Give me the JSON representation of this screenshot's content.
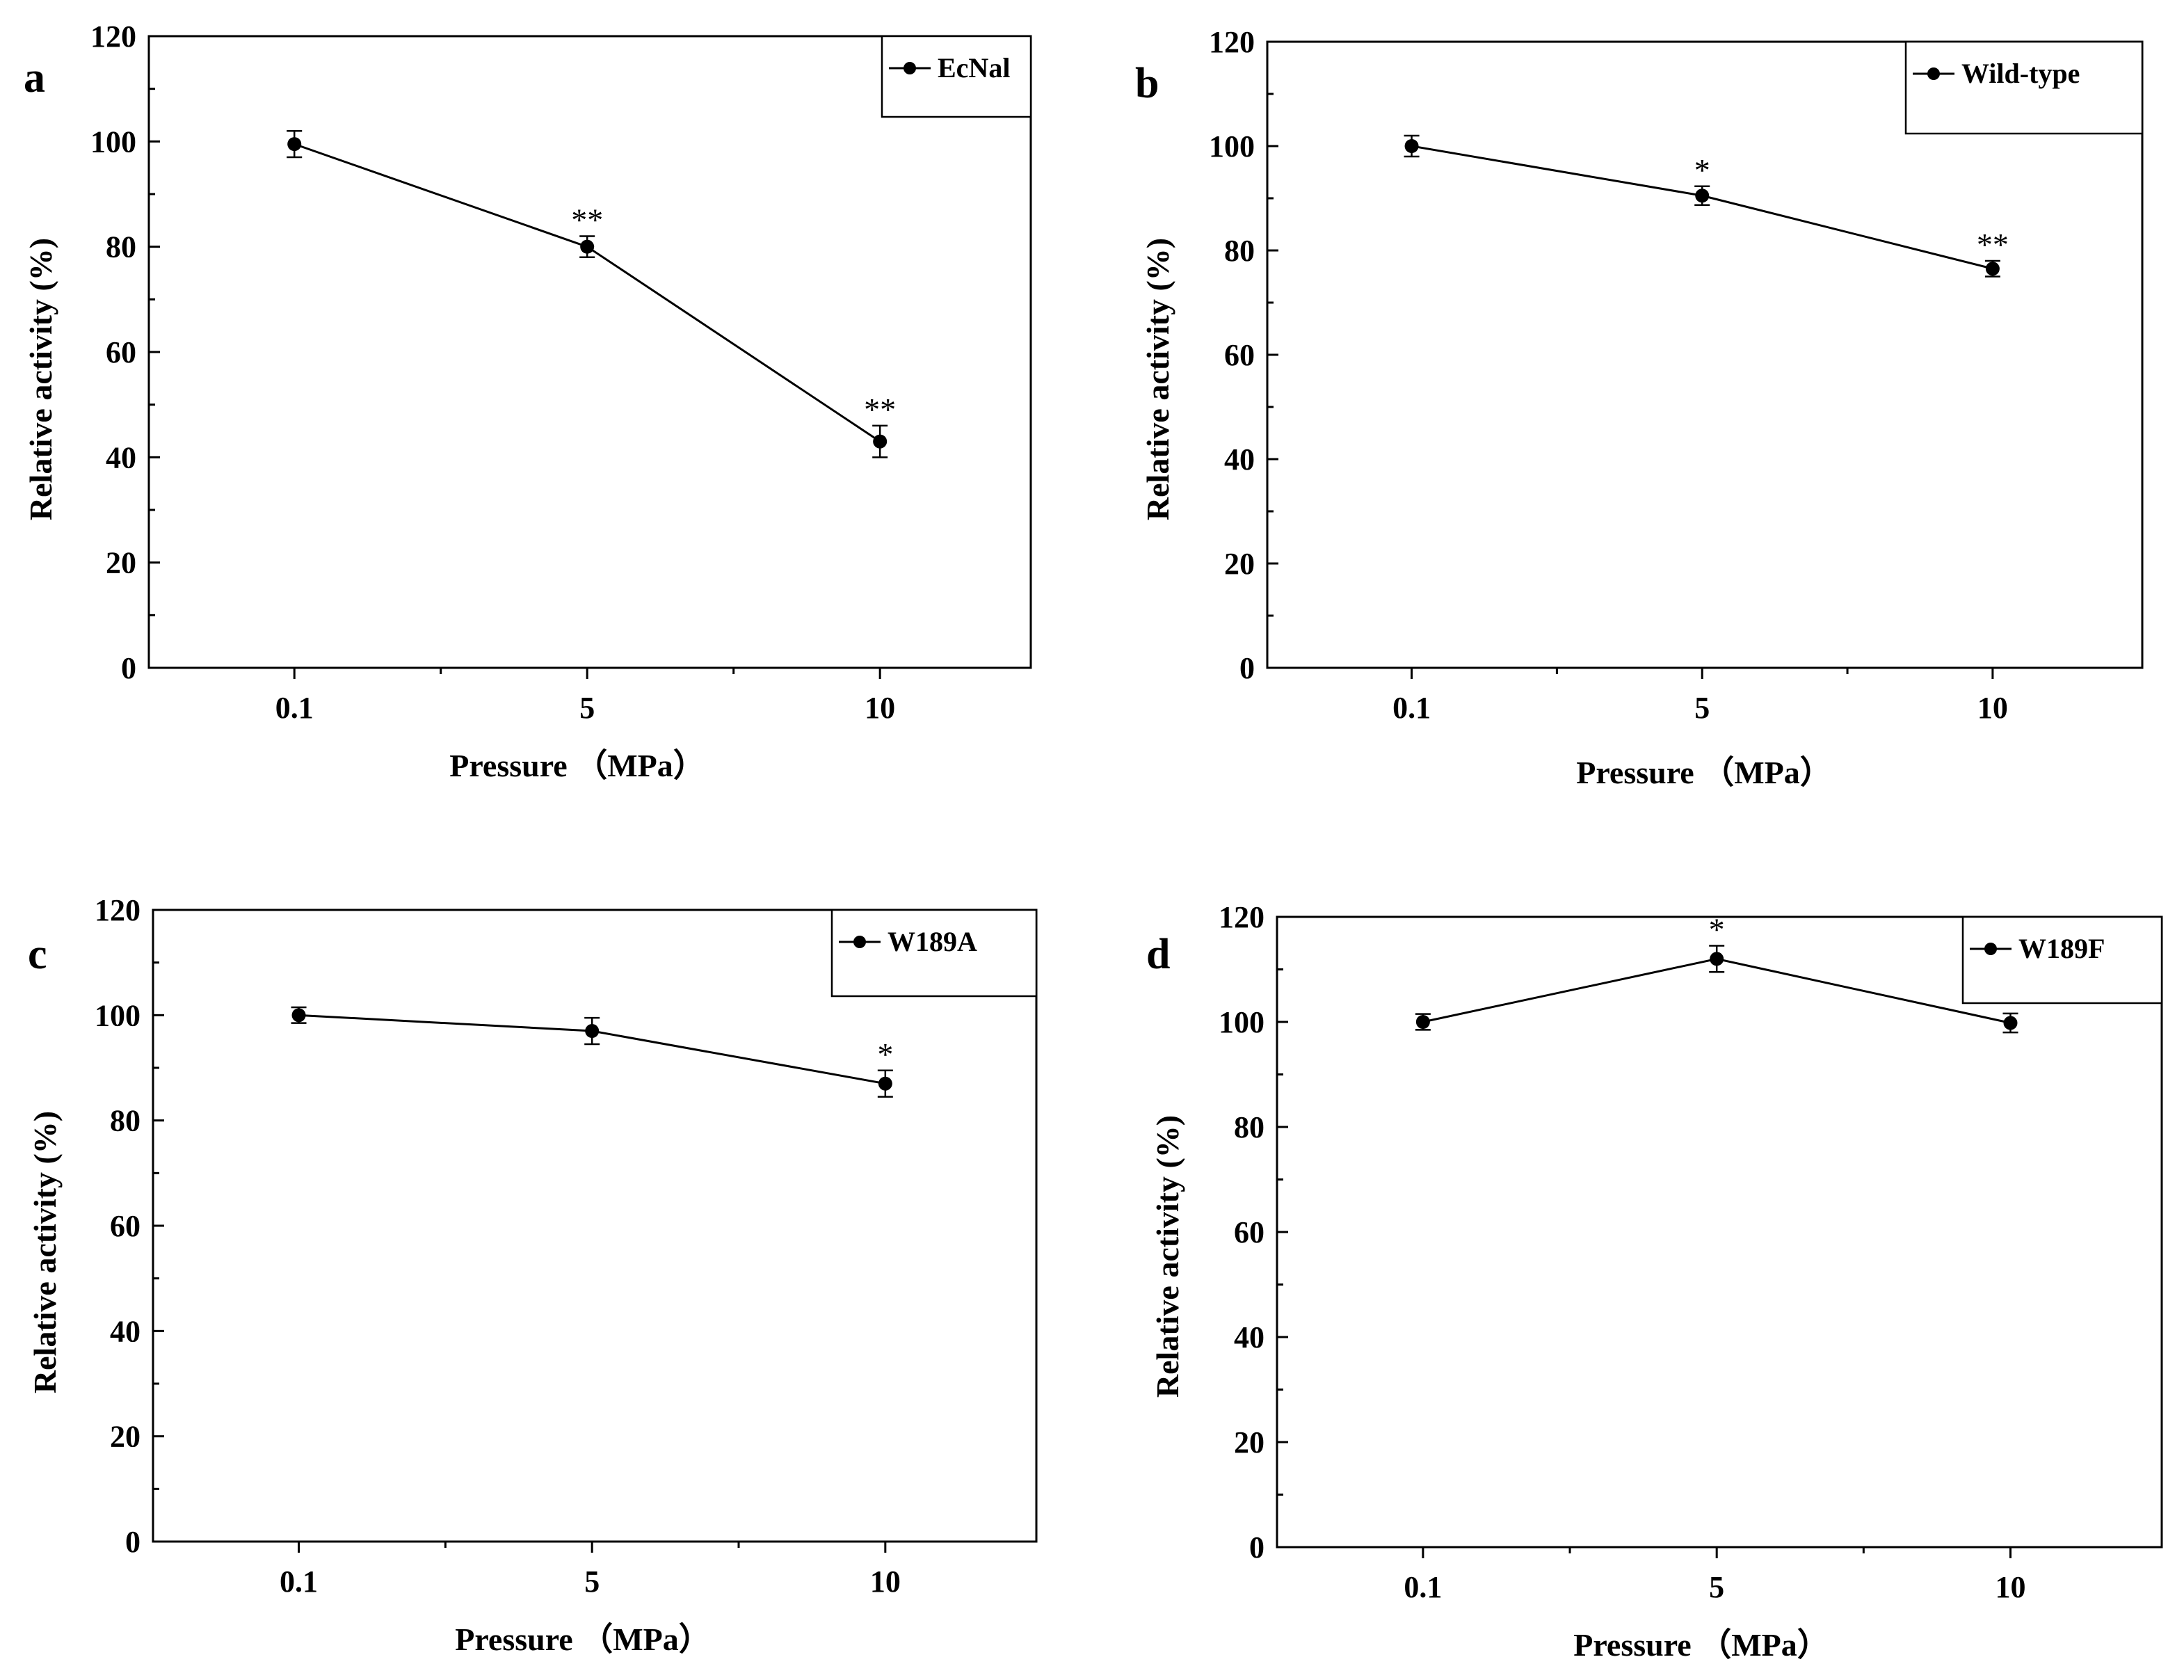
{
  "chart_data": [
    {
      "type": "line",
      "panel_label": "a",
      "categories": [
        "0.1",
        "5",
        "10"
      ],
      "series": [
        {
          "name": "EcNal",
          "values": [
            99.5,
            80,
            43
          ],
          "errors": [
            2.5,
            2,
            3
          ]
        }
      ],
      "significance": [
        "",
        "**",
        "**"
      ],
      "xlabel": "Pressure （MPa）",
      "ylabel": "Relative activity (%)",
      "ylim": [
        0,
        120
      ],
      "yticks": [
        "0",
        "20",
        "40",
        "60",
        "80",
        "100",
        "120"
      ],
      "legend": "top-right"
    },
    {
      "type": "line",
      "panel_label": "b",
      "categories": [
        "0.1",
        "5",
        "10"
      ],
      "series": [
        {
          "name": "Wild-type",
          "values": [
            100,
            90.5,
            76.5
          ],
          "errors": [
            2,
            1.8,
            1.5
          ]
        }
      ],
      "significance": [
        "",
        "*",
        "**"
      ],
      "xlabel": "Pressure （MPa）",
      "ylabel": "Relative activity (%)",
      "ylim": [
        0,
        120
      ],
      "yticks": [
        "0",
        "20",
        "40",
        "60",
        "80",
        "100",
        "120"
      ],
      "legend": "top-right"
    },
    {
      "type": "line",
      "panel_label": "c",
      "categories": [
        "0.1",
        "5",
        "10"
      ],
      "series": [
        {
          "name": "W189A",
          "values": [
            100,
            97,
            87
          ],
          "errors": [
            1.5,
            2.5,
            2.5
          ]
        }
      ],
      "significance": [
        "",
        "",
        "*"
      ],
      "xlabel": "Pressure （MPa）",
      "ylabel": "Relative activity (%)",
      "ylim": [
        0,
        120
      ],
      "yticks": [
        "0",
        "20",
        "40",
        "60",
        "80",
        "100",
        "120"
      ],
      "legend": "top-right"
    },
    {
      "type": "line",
      "panel_label": "d",
      "categories": [
        "0.1",
        "5",
        "10"
      ],
      "series": [
        {
          "name": "W189F",
          "values": [
            100,
            112,
            99.8
          ],
          "errors": [
            1.5,
            2.5,
            1.8
          ]
        }
      ],
      "significance": [
        "",
        "*",
        ""
      ],
      "xlabel": "Pressure （MPa）",
      "ylabel": "Relative activity (%)",
      "ylim": [
        0,
        120
      ],
      "yticks": [
        "0",
        "20",
        "40",
        "60",
        "80",
        "100",
        "120"
      ],
      "legend": "top-right"
    }
  ]
}
